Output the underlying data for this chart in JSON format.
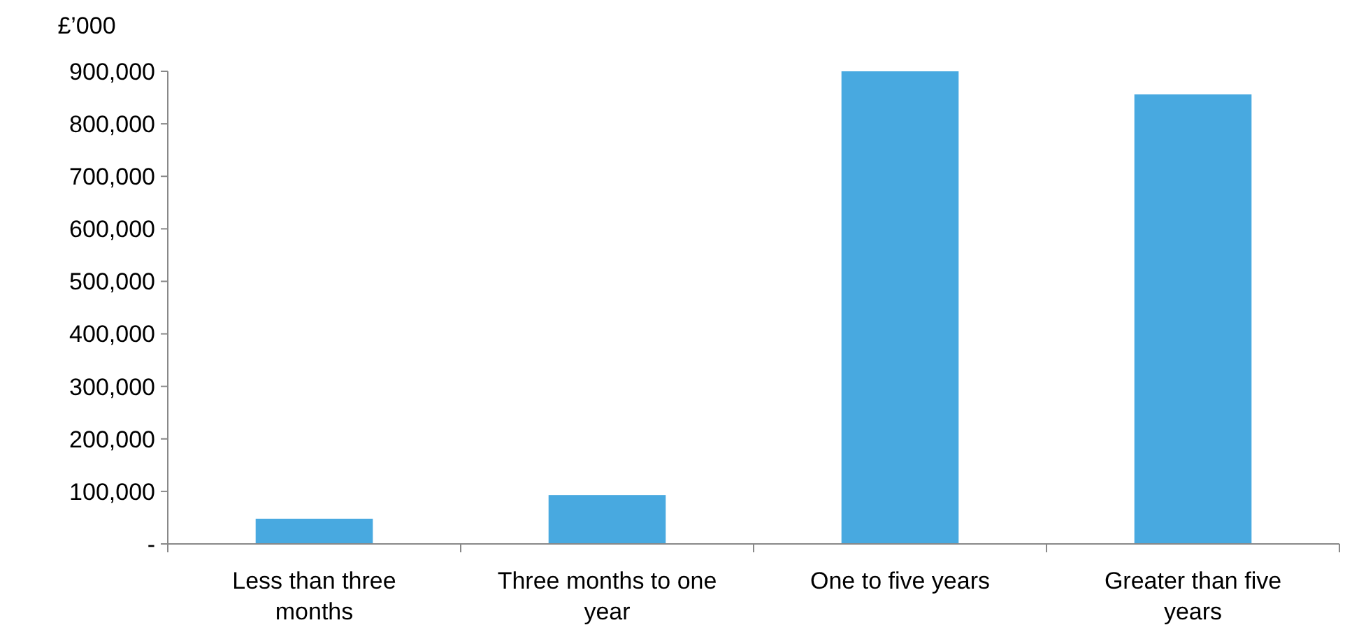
{
  "chart_data": {
    "type": "bar",
    "ylabel": "£’000",
    "categories": [
      "Less than three months",
      "Three months to one year",
      "One to five years",
      "Greater than five years"
    ],
    "values": [
      48000,
      93000,
      900000,
      856000
    ],
    "color": "#48a9e0",
    "ylim": [
      0,
      900000
    ],
    "yticks": [
      {
        "value": 0,
        "label": "-"
      },
      {
        "value": 100000,
        "label": "100,000"
      },
      {
        "value": 200000,
        "label": "200,000"
      },
      {
        "value": 300000,
        "label": "300,000"
      },
      {
        "value": 400000,
        "label": "400,000"
      },
      {
        "value": 500000,
        "label": "500,000"
      },
      {
        "value": 600000,
        "label": "600,000"
      },
      {
        "value": 700000,
        "label": "700,000"
      },
      {
        "value": 800000,
        "label": "800,000"
      },
      {
        "value": 900000,
        "label": "900,000"
      }
    ],
    "grid": false
  }
}
